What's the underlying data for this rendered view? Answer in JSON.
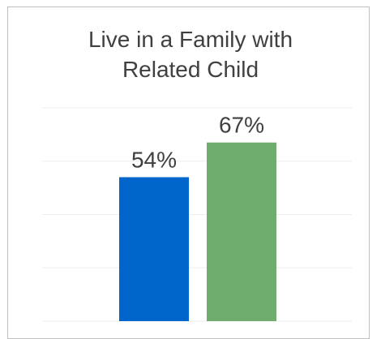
{
  "chart_data": {
    "type": "bar",
    "title_lines": [
      "Live in a Family with",
      "Related Child"
    ],
    "categories": [
      "",
      ""
    ],
    "values": [
      54,
      67
    ],
    "data_labels": [
      "54%",
      "67%"
    ],
    "colors": [
      "#0066cc",
      "#6fad6f"
    ],
    "ylim": [
      0,
      80
    ],
    "grid": true,
    "legend": "none"
  }
}
